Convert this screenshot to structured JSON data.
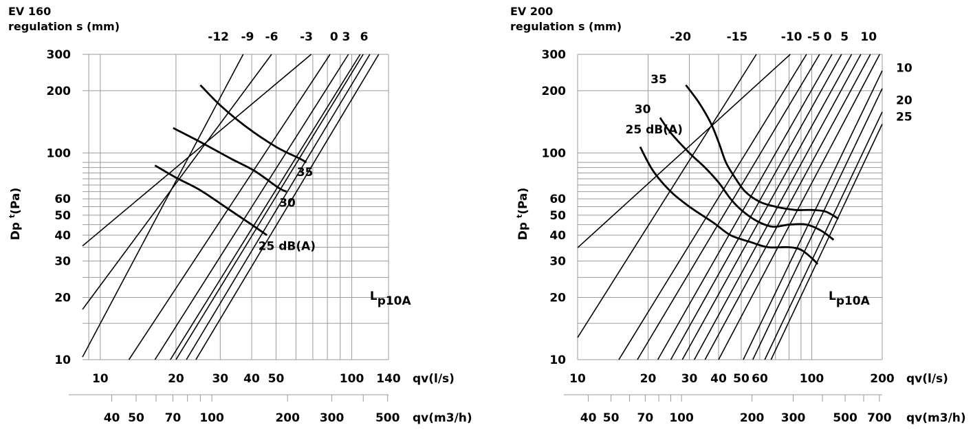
{
  "colors": {
    "grid": "#9a9a9a",
    "line": "#000000",
    "background": "#ffffff"
  },
  "chart_data": [
    {
      "type": "line",
      "title": "EV 160",
      "subtitle": "regulation s (mm)",
      "xlabel": "qv(l/s)",
      "xlabel2": "qv(m3/h)",
      "ylabel": "Dp t(Pa)",
      "ylabel_main": "Dp",
      "ylabel_sup": "t",
      "ylabel_tail": "(Pa)",
      "x_scale": "log",
      "y_scale": "log",
      "xlim": [
        8.5,
        140
      ],
      "ylim": [
        10,
        300
      ],
      "x_ticks": [
        10,
        20,
        30,
        40,
        50,
        100,
        140
      ],
      "x_tick_labels": [
        "10",
        "20",
        "30",
        "40",
        "50",
        "100",
        "140"
      ],
      "x2_ticks_m3h": [
        40,
        50,
        70,
        100,
        200,
        300,
        500
      ],
      "x2_tick_labels": [
        "40",
        "50",
        "70",
        "100",
        "200",
        "300",
        "500"
      ],
      "y_ticks": [
        10,
        20,
        30,
        40,
        50,
        60,
        100,
        200,
        300
      ],
      "y_tick_labels": [
        "10",
        "20",
        "30",
        "40",
        "50",
        "60",
        "100",
        "200",
        "300"
      ],
      "grid": true,
      "lp_label": {
        "main": "L",
        "sub": "p10A",
        "x": 118,
        "y": 19.5
      },
      "regulation_lines": [
        {
          "label": "",
          "points": [
            [
              8.5,
              10.3
            ],
            [
              37,
              300
            ]
          ]
        },
        {
          "label": "",
          "points": [
            [
              8.5,
              17.5
            ],
            [
              48,
              300
            ]
          ]
        },
        {
          "label": "-12",
          "points": [
            [
              8.5,
              35.5
            ],
            [
              69,
              300
            ]
          ]
        },
        {
          "label": "-9",
          "points": [
            [
              13,
              10
            ],
            [
              82,
              300
            ]
          ]
        },
        {
          "label": "-6",
          "points": [
            [
              16.5,
              10
            ],
            [
              97,
              300
            ]
          ]
        },
        {
          "label": "-3",
          "points": [
            [
              19,
              10
            ],
            [
              108,
              300
            ]
          ]
        },
        {
          "label": "0",
          "points": [
            [
              20,
              10
            ],
            [
              111,
              300
            ]
          ]
        },
        {
          "label": "3",
          "points": [
            [
              22,
              10
            ],
            [
              118,
              300
            ]
          ]
        },
        {
          "label": "6",
          "points": [
            [
              24,
              10
            ],
            [
              128,
              300
            ]
          ]
        }
      ],
      "regulation_labels": [
        {
          "text": "-12",
          "x": 29.5
        },
        {
          "text": "-9",
          "x": 38.5
        },
        {
          "text": "-6",
          "x": 48
        },
        {
          "text": "-3",
          "x": 66
        },
        {
          "text": "0",
          "x": 85
        },
        {
          "text": "3",
          "x": 95
        },
        {
          "text": "6",
          "x": 112
        }
      ],
      "series": [
        {
          "name": "25 dB(A)",
          "label_at": [
            42.5,
            35.5
          ],
          "points": [
            [
              16.5,
              87
            ],
            [
              20,
              76
            ],
            [
              25,
              66
            ],
            [
              32,
              54
            ],
            [
              40,
              45
            ],
            [
              46,
              40
            ]
          ]
        },
        {
          "name": "30",
          "label_at": [
            51.5,
            57.5
          ],
          "points": [
            [
              19.5,
              132
            ],
            [
              25,
              113
            ],
            [
              33,
              94
            ],
            [
              41,
              82
            ],
            [
              51,
              68
            ],
            [
              55,
              65
            ]
          ]
        },
        {
          "name": "35",
          "label_at": [
            60.5,
            81
          ],
          "points": [
            [
              25,
              213
            ],
            [
              30,
              170
            ],
            [
              38,
              134
            ],
            [
              50,
              107
            ],
            [
              62,
              94
            ],
            [
              66,
              90
            ]
          ]
        }
      ]
    },
    {
      "type": "line",
      "title": "EV 200",
      "subtitle": "regulation s (mm)",
      "xlabel": "qv(l/s)",
      "xlabel2": "qv(m3/h)",
      "ylabel": "Dp t(Pa)",
      "ylabel_main": "Dp",
      "ylabel_sup": "t",
      "ylabel_tail": "(Pa)",
      "x_scale": "log",
      "y_scale": "log",
      "xlim": [
        10,
        200
      ],
      "ylim": [
        10,
        300
      ],
      "x_ticks": [
        10,
        20,
        30,
        40,
        50,
        60,
        100,
        200
      ],
      "x_tick_labels": [
        "10",
        "20",
        "30",
        "40",
        "50",
        "60",
        "100",
        "200"
      ],
      "x2_ticks_m3h": [
        40,
        50,
        70,
        100,
        200,
        300,
        500,
        700
      ],
      "x2_tick_labels": [
        "40",
        "50",
        "70",
        "100",
        "200",
        "300",
        "500",
        "700"
      ],
      "y_ticks": [
        10,
        20,
        30,
        40,
        50,
        60,
        100,
        200,
        300
      ],
      "y_tick_labels": [
        "10",
        "20",
        "30",
        "40",
        "50",
        "60",
        "100",
        "200",
        "300"
      ],
      "grid": true,
      "lp_label": {
        "main": "L",
        "sub": "p10A",
        "x": 118,
        "y": 19.5
      },
      "regulation_lines": [
        {
          "label": "",
          "points": [
            [
              10,
              12.8
            ],
            [
              58,
              300
            ]
          ]
        },
        {
          "label": "",
          "points": [
            [
              10,
              34.8
            ],
            [
              81,
              300
            ]
          ]
        },
        {
          "label": "-20",
          "points": [
            [
              15,
              10
            ],
            [
              95,
              300
            ]
          ]
        },
        {
          "label": "",
          "points": [
            [
              18,
              10
            ],
            [
              108,
              300
            ]
          ]
        },
        {
          "label": "-15",
          "points": [
            [
              22,
              10
            ],
            [
              122,
              300
            ]
          ]
        },
        {
          "label": "",
          "points": [
            [
              25,
              10
            ],
            [
              134,
              300
            ]
          ]
        },
        {
          "label": "-10",
          "points": [
            [
              28,
              10
            ],
            [
              148,
              300
            ]
          ]
        },
        {
          "label": "-5",
          "points": [
            [
              31.5,
              10
            ],
            [
              162,
              300
            ]
          ]
        },
        {
          "label": "0",
          "points": [
            [
              35,
              10
            ],
            [
              178,
              300
            ]
          ]
        },
        {
          "label": "5",
          "points": [
            [
              40,
              10
            ],
            [
              195,
              300
            ]
          ]
        },
        {
          "label": "10",
          "points": [
            [
              51,
              10
            ],
            [
              200,
              250
            ]
          ]
        },
        {
          "label": "",
          "points": [
            [
              56,
              10
            ],
            [
              200,
              205
            ]
          ]
        },
        {
          "label": "20",
          "points": [
            [
              63,
              10
            ],
            [
              200,
              158
            ]
          ]
        },
        {
          "label": "25",
          "points": [
            [
              67,
              10
            ],
            [
              200,
              138
            ]
          ]
        }
      ],
      "regulation_labels": [
        {
          "text": "-20",
          "x": 27.5
        },
        {
          "text": "-15",
          "x": 48
        },
        {
          "text": "-10",
          "x": 82
        },
        {
          "text": "-5",
          "x": 102
        },
        {
          "text": "0",
          "x": 117
        },
        {
          "text": "5",
          "x": 138
        },
        {
          "text": "10",
          "x": 175
        }
      ],
      "right_labels": [
        {
          "text": "10",
          "y": 258
        },
        {
          "text": "20",
          "y": 180
        },
        {
          "text": "25",
          "y": 150
        }
      ],
      "series": [
        {
          "name": "25 dB(A)",
          "label_at": [
            16,
            130
          ],
          "points": [
            [
              18.5,
              107
            ],
            [
              21,
              82
            ],
            [
              25,
              65
            ],
            [
              30,
              55
            ],
            [
              38,
              46
            ],
            [
              45,
              40
            ],
            [
              55,
              37
            ],
            [
              65,
              35
            ],
            [
              80,
              35
            ],
            [
              90,
              34
            ],
            [
              100,
              31
            ],
            [
              106,
              29
            ]
          ]
        },
        {
          "name": "30",
          "label_at": [
            17.5,
            163
          ],
          "points": [
            [
              22.5,
              148
            ],
            [
              25,
              125
            ],
            [
              30,
              100
            ],
            [
              35,
              85
            ],
            [
              40,
              72
            ],
            [
              45,
              60
            ],
            [
              50,
              53
            ],
            [
              58,
              47
            ],
            [
              68,
              44
            ],
            [
              80,
              45
            ],
            [
              95,
              45
            ],
            [
              110,
              42
            ],
            [
              124,
              38
            ]
          ]
        },
        {
          "name": "35",
          "label_at": [
            20.5,
            228
          ],
          "points": [
            [
              29,
              213
            ],
            [
              33,
              175
            ],
            [
              37,
              140
            ],
            [
              40,
              113
            ],
            [
              43,
              90
            ],
            [
              47,
              76
            ],
            [
              52,
              65
            ],
            [
              60,
              58
            ],
            [
              70,
              55
            ],
            [
              85,
              53
            ],
            [
              100,
              53
            ],
            [
              115,
              52
            ],
            [
              130,
              48
            ]
          ]
        }
      ]
    }
  ]
}
